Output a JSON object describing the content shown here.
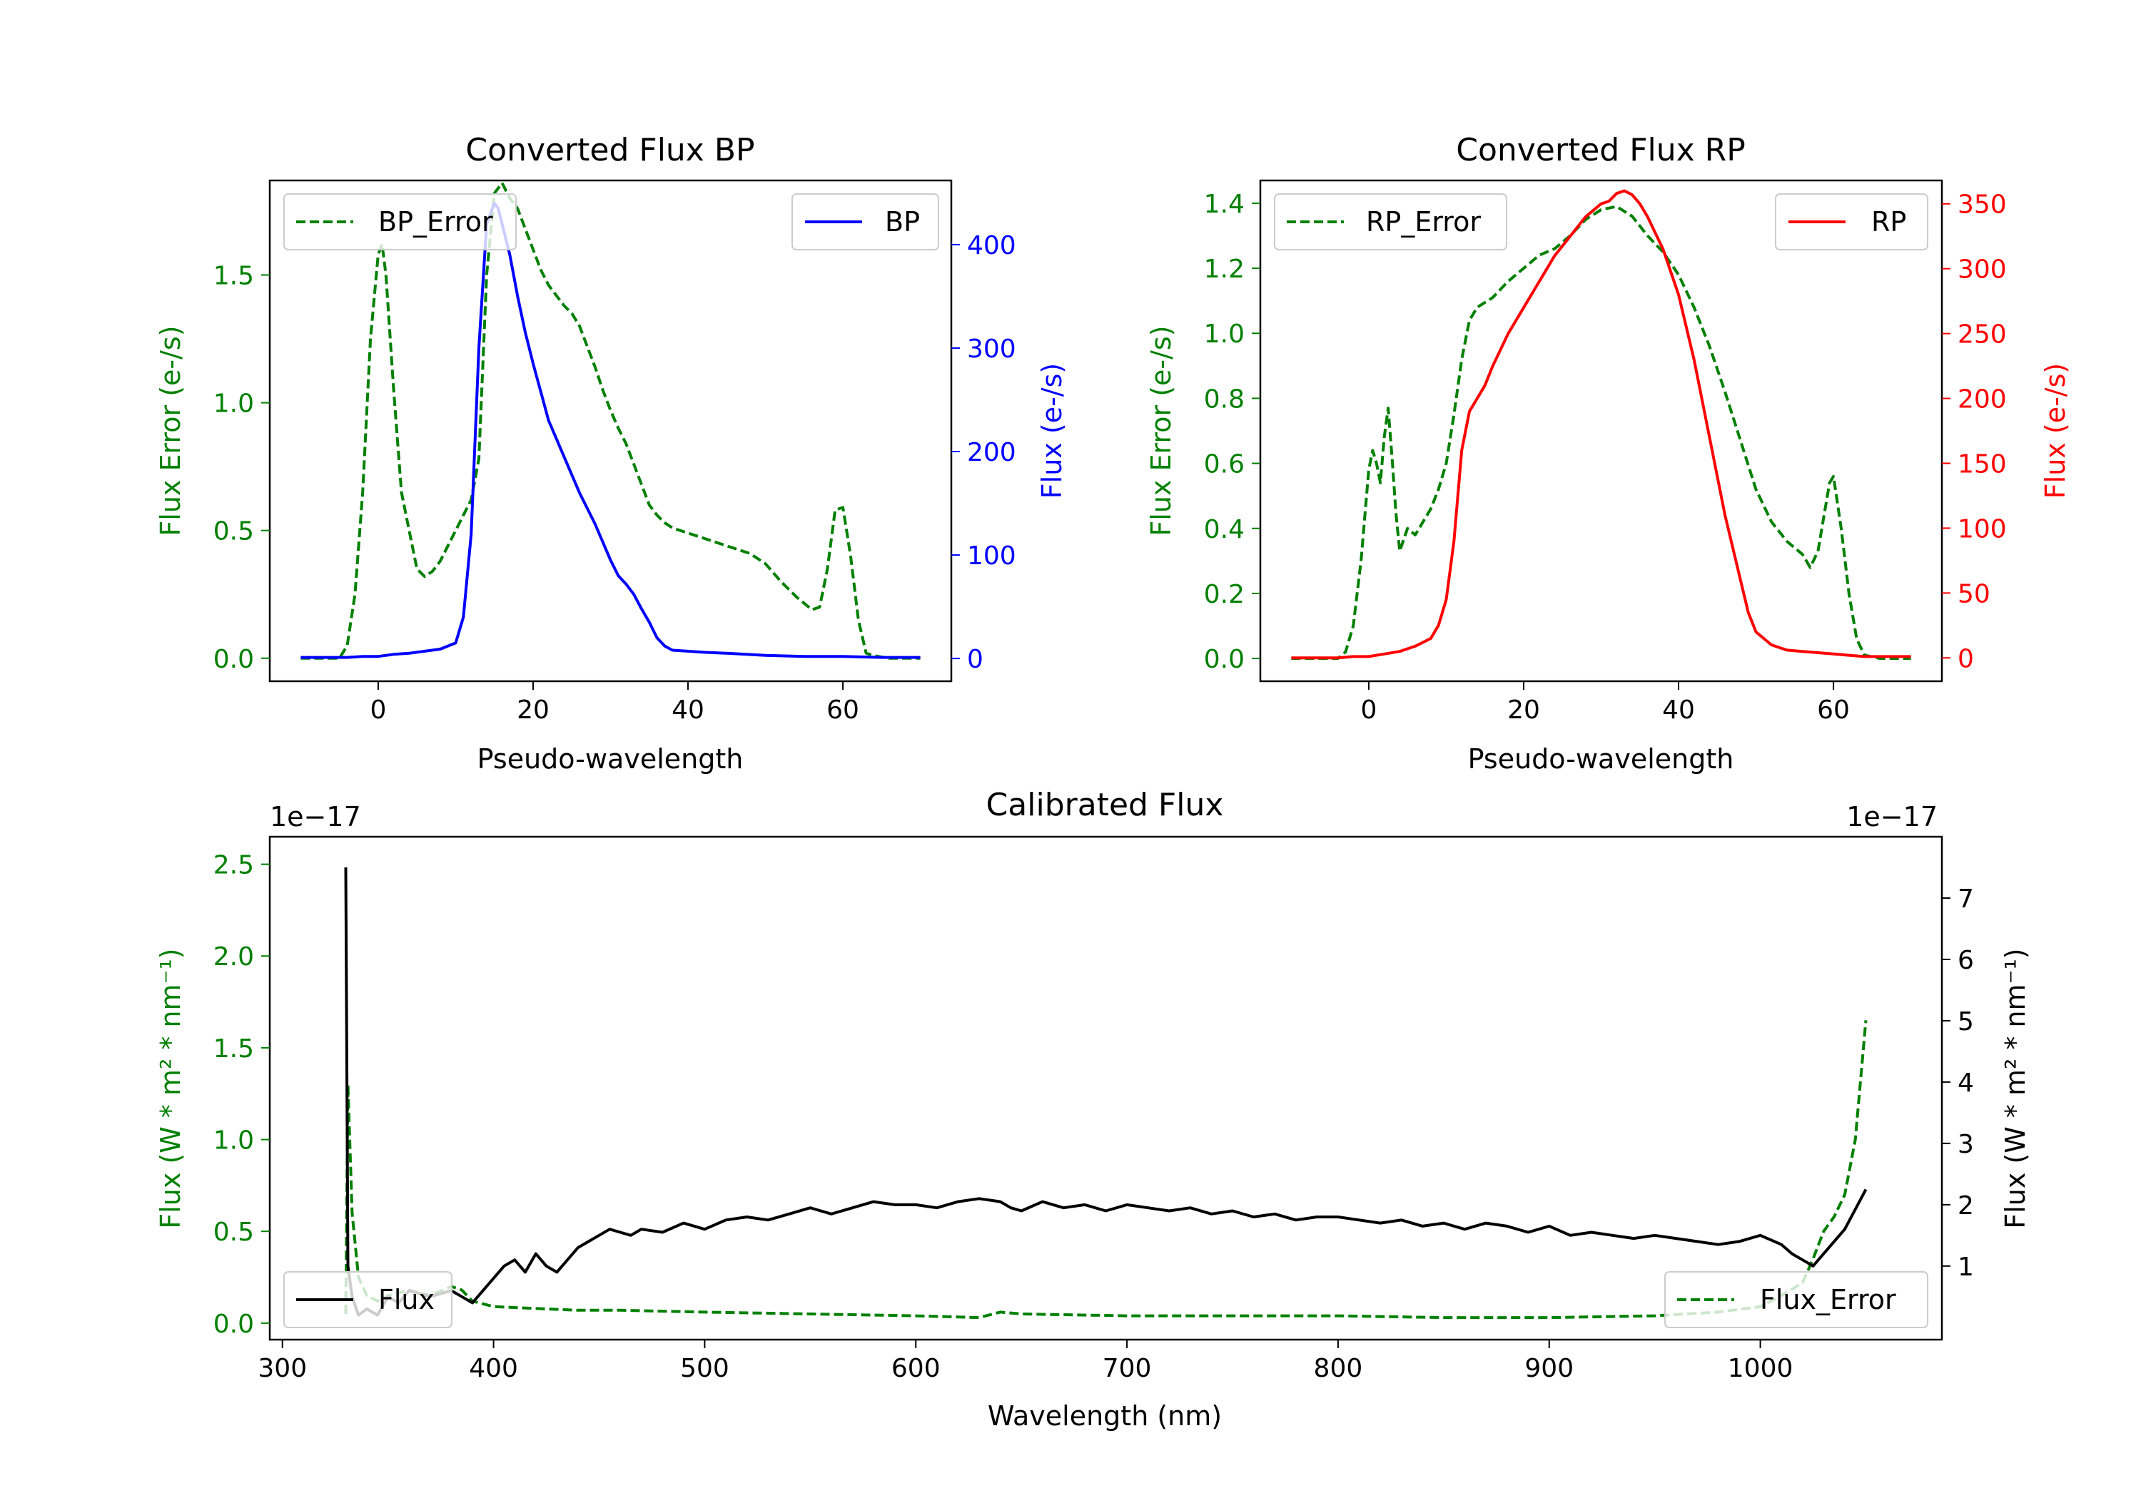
{
  "chart_data": [
    {
      "id": "bp",
      "type": "line",
      "title": "Converted Flux BP",
      "xlabel": "Pseudo-wavelength",
      "ylabel_left": "Flux Error (e-/s)",
      "ylabel_right": "Flux (e-/s)",
      "xlim": [
        -14,
        74
      ],
      "ylim_left": [
        -0.09,
        1.87
      ],
      "ylim_right": [
        -22,
        462
      ],
      "xticks": [
        "0",
        "20",
        "40",
        "60"
      ],
      "xtick_values": [
        0,
        20,
        40,
        60
      ],
      "yticks_left": [
        "0.0",
        "0.5",
        "1.0",
        "1.5"
      ],
      "ytick_values_left": [
        0,
        0.5,
        1.0,
        1.5
      ],
      "yticks_right": [
        "0",
        "100",
        "200",
        "300",
        "400"
      ],
      "ytick_values_right": [
        0,
        100,
        200,
        300,
        400
      ],
      "left_color": "#008000",
      "right_color": "#0000ff",
      "series": [
        {
          "name": "BP_Error",
          "legend": "BP_Error",
          "axis": "left",
          "style": "dashed",
          "color": "#008000",
          "x": [
            -10,
            -5,
            -4,
            -3,
            -2,
            -1,
            0,
            0.5,
            1,
            2,
            3,
            4,
            5,
            6,
            7,
            8,
            9,
            10,
            11,
            12,
            13,
            14,
            15,
            16,
            17,
            18,
            19,
            20,
            21,
            22,
            23,
            24,
            25,
            26,
            27,
            28,
            29,
            30,
            31,
            32,
            33,
            34,
            35,
            36,
            37,
            38,
            40,
            42,
            44,
            46,
            48,
            50,
            52,
            54,
            56,
            57,
            58,
            59,
            60,
            61,
            62,
            63,
            64,
            66,
            68,
            70
          ],
          "y": [
            0,
            0,
            0.05,
            0.25,
            0.65,
            1.25,
            1.58,
            1.62,
            1.5,
            1.05,
            0.65,
            0.5,
            0.35,
            0.32,
            0.34,
            0.38,
            0.44,
            0.5,
            0.56,
            0.62,
            0.78,
            1.5,
            1.82,
            1.86,
            1.8,
            1.76,
            1.68,
            1.6,
            1.52,
            1.46,
            1.42,
            1.38,
            1.35,
            1.3,
            1.22,
            1.14,
            1.05,
            0.97,
            0.9,
            0.84,
            0.76,
            0.68,
            0.6,
            0.56,
            0.53,
            0.51,
            0.49,
            0.47,
            0.45,
            0.43,
            0.41,
            0.37,
            0.3,
            0.24,
            0.19,
            0.2,
            0.35,
            0.58,
            0.59,
            0.4,
            0.15,
            0.02,
            0.01,
            0,
            0,
            0
          ]
        },
        {
          "name": "BP",
          "legend": "BP",
          "axis": "right",
          "style": "solid",
          "color": "#0000ff",
          "x": [
            -10,
            -6,
            -4,
            -2,
            0,
            2,
            4,
            6,
            8,
            10,
            11,
            12,
            13,
            14,
            15,
            15.5,
            16,
            17,
            18,
            19,
            20,
            22,
            24,
            26,
            28,
            30,
            31,
            32,
            33,
            34,
            35,
            36,
            37,
            38,
            40,
            42,
            45,
            50,
            55,
            60,
            65,
            70
          ],
          "y": [
            1,
            1,
            1,
            2,
            2,
            4,
            5,
            7,
            9,
            15,
            40,
            120,
            300,
            420,
            440,
            435,
            420,
            390,
            350,
            315,
            285,
            230,
            195,
            160,
            130,
            95,
            80,
            72,
            62,
            48,
            35,
            20,
            12,
            8,
            7,
            6,
            5,
            3,
            2,
            2,
            1,
            1
          ]
        }
      ],
      "legends": [
        {
          "series": "BP_Error",
          "location": "upper-left"
        },
        {
          "series": "BP",
          "location": "upper-right"
        }
      ]
    },
    {
      "id": "rp",
      "type": "line",
      "title": "Converted Flux RP",
      "xlabel": "Pseudo-wavelength",
      "ylabel_left": "Flux Error (e-/s)",
      "ylabel_right": "Flux (e-/s)",
      "xlim": [
        -14,
        74
      ],
      "ylim_left": [
        -0.07,
        1.47
      ],
      "ylim_right": [
        -18,
        368
      ],
      "xticks": [
        "0",
        "20",
        "40",
        "60"
      ],
      "xtick_values": [
        0,
        20,
        40,
        60
      ],
      "yticks_left": [
        "0.0",
        "0.2",
        "0.4",
        "0.6",
        "0.8",
        "1.0",
        "1.2",
        "1.4"
      ],
      "ytick_values_left": [
        0,
        0.2,
        0.4,
        0.6,
        0.8,
        1.0,
        1.2,
        1.4
      ],
      "yticks_right": [
        "0",
        "50",
        "100",
        "150",
        "200",
        "250",
        "300",
        "350"
      ],
      "ytick_values_right": [
        0,
        50,
        100,
        150,
        200,
        250,
        300,
        350
      ],
      "left_color": "#008000",
      "right_color": "#ff0000",
      "series": [
        {
          "name": "RP_Error",
          "legend": "RP_Error",
          "axis": "left",
          "style": "dashed",
          "color": "#008000",
          "x": [
            -10,
            -4,
            -3,
            -2,
            -1,
            0,
            0.5,
            1,
            1.5,
            2,
            2.5,
            3,
            3.5,
            4,
            5,
            6,
            7,
            8,
            9,
            10,
            11,
            12,
            13,
            14,
            16,
            18,
            20,
            22,
            24,
            26,
            28,
            30,
            32,
            34,
            36,
            38,
            40,
            42,
            44,
            46,
            48,
            50,
            52,
            54,
            56,
            57,
            58,
            59,
            59.5,
            60,
            61,
            62,
            63,
            64,
            66,
            70
          ],
          "y": [
            0,
            0,
            0.02,
            0.1,
            0.3,
            0.58,
            0.64,
            0.6,
            0.54,
            0.68,
            0.77,
            0.62,
            0.45,
            0.33,
            0.4,
            0.38,
            0.42,
            0.46,
            0.52,
            0.6,
            0.75,
            0.92,
            1.04,
            1.08,
            1.11,
            1.16,
            1.2,
            1.24,
            1.26,
            1.3,
            1.35,
            1.38,
            1.39,
            1.36,
            1.3,
            1.25,
            1.18,
            1.08,
            0.96,
            0.82,
            0.67,
            0.52,
            0.42,
            0.36,
            0.32,
            0.28,
            0.33,
            0.47,
            0.54,
            0.56,
            0.4,
            0.2,
            0.06,
            0.01,
            0,
            0
          ]
        },
        {
          "name": "RP",
          "legend": "RP",
          "axis": "right",
          "style": "solid",
          "color": "#ff0000",
          "x": [
            -10,
            -4,
            -2,
            0,
            2,
            4,
            6,
            8,
            9,
            10,
            11,
            12,
            13,
            14,
            15,
            16,
            18,
            20,
            22,
            24,
            26,
            28,
            30,
            31,
            32,
            33,
            34,
            35,
            36,
            38,
            40,
            42,
            44,
            46,
            48,
            49,
            50,
            52,
            54,
            56,
            58,
            60,
            62,
            64,
            66,
            70
          ],
          "y": [
            0,
            0,
            1,
            1,
            3,
            5,
            9,
            15,
            25,
            45,
            90,
            160,
            190,
            200,
            210,
            225,
            250,
            270,
            290,
            310,
            325,
            340,
            350,
            352,
            358,
            360,
            357,
            350,
            340,
            315,
            280,
            230,
            170,
            110,
            60,
            35,
            20,
            10,
            6,
            5,
            4,
            3,
            2,
            1,
            1,
            1
          ]
        }
      ],
      "legends": [
        {
          "series": "RP_Error",
          "location": "upper-left"
        },
        {
          "series": "RP",
          "location": "upper-right"
        }
      ]
    },
    {
      "id": "cal",
      "type": "line",
      "title": "Calibrated Flux",
      "xlabel": "Wavelength (nm)",
      "ylabel_left": "Flux (W * m² * nm⁻¹)",
      "ylabel_right": "Flux (W * m² * nm⁻¹)",
      "offset_left": "1e−17",
      "offset_right": "1e−17",
      "xlim": [
        294,
        1086
      ],
      "ylim_left": [
        -0.09,
        2.65
      ],
      "ylim_right": [
        -0.2,
        8.0
      ],
      "xticks": [
        "300",
        "400",
        "500",
        "600",
        "700",
        "800",
        "900",
        "1000"
      ],
      "xtick_values": [
        300,
        400,
        500,
        600,
        700,
        800,
        900,
        1000
      ],
      "yticks_left": [
        "0.0",
        "0.5",
        "1.0",
        "1.5",
        "2.0",
        "2.5"
      ],
      "ytick_values_left": [
        0,
        0.5,
        1.0,
        1.5,
        2.0,
        2.5
      ],
      "yticks_right": [
        "1",
        "2",
        "3",
        "4",
        "5",
        "6",
        "7"
      ],
      "ytick_values_right": [
        1,
        2,
        3,
        4,
        5,
        6,
        7
      ],
      "left_color": "#008000",
      "right_color": "#000000",
      "series": [
        {
          "name": "Flux_Error",
          "legend": "Flux_Error",
          "axis": "left",
          "style": "dashed",
          "color": "#008000",
          "x": [
            330,
            331,
            333,
            336,
            340,
            345,
            350,
            360,
            370,
            380,
            385,
            390,
            400,
            420,
            440,
            460,
            500,
            550,
            600,
            630,
            640,
            650,
            700,
            750,
            800,
            850,
            900,
            950,
            980,
            1000,
            1010,
            1020,
            1025,
            1030,
            1035,
            1040,
            1045,
            1050
          ],
          "y": [
            0.05,
            1.3,
            0.6,
            0.25,
            0.15,
            0.12,
            0.15,
            0.18,
            0.15,
            0.2,
            0.18,
            0.12,
            0.09,
            0.08,
            0.07,
            0.07,
            0.06,
            0.05,
            0.04,
            0.03,
            0.06,
            0.05,
            0.04,
            0.04,
            0.04,
            0.03,
            0.03,
            0.04,
            0.06,
            0.09,
            0.15,
            0.22,
            0.35,
            0.5,
            0.58,
            0.7,
            1.0,
            1.65
          ]
        },
        {
          "name": "Flux",
          "legend": "Flux",
          "axis": "right",
          "style": "solid",
          "color": "#000000",
          "x": [
            330,
            331,
            333,
            336,
            340,
            345,
            350,
            355,
            360,
            370,
            380,
            385,
            390,
            395,
            400,
            405,
            410,
            415,
            420,
            425,
            430,
            435,
            440,
            445,
            450,
            455,
            460,
            465,
            470,
            480,
            490,
            500,
            510,
            520,
            530,
            540,
            550,
            560,
            570,
            580,
            590,
            600,
            610,
            620,
            630,
            640,
            645,
            650,
            660,
            670,
            680,
            690,
            700,
            710,
            720,
            730,
            740,
            750,
            760,
            770,
            780,
            790,
            800,
            810,
            820,
            830,
            840,
            850,
            860,
            870,
            880,
            890,
            900,
            910,
            920,
            930,
            940,
            950,
            960,
            970,
            980,
            990,
            1000,
            1010,
            1015,
            1020,
            1025,
            1030,
            1040,
            1050
          ],
          "y": [
            7.5,
            1.0,
            0.5,
            0.2,
            0.3,
            0.2,
            0.5,
            0.4,
            0.6,
            0.5,
            0.6,
            0.5,
            0.4,
            0.6,
            0.8,
            1.0,
            1.1,
            0.9,
            1.2,
            1.0,
            0.9,
            1.1,
            1.3,
            1.4,
            1.5,
            1.6,
            1.55,
            1.5,
            1.6,
            1.55,
            1.7,
            1.6,
            1.75,
            1.8,
            1.75,
            1.85,
            1.95,
            1.85,
            1.95,
            2.05,
            2.0,
            2.0,
            1.95,
            2.05,
            2.1,
            2.05,
            1.95,
            1.9,
            2.05,
            1.95,
            2.0,
            1.9,
            2.0,
            1.95,
            1.9,
            1.95,
            1.85,
            1.9,
            1.8,
            1.85,
            1.75,
            1.8,
            1.8,
            1.75,
            1.7,
            1.75,
            1.65,
            1.7,
            1.6,
            1.7,
            1.65,
            1.55,
            1.65,
            1.5,
            1.55,
            1.5,
            1.45,
            1.5,
            1.45,
            1.4,
            1.35,
            1.4,
            1.5,
            1.35,
            1.2,
            1.1,
            1.0,
            1.2,
            1.6,
            2.25
          ]
        }
      ],
      "legends": [
        {
          "series": "Flux",
          "location": "lower-left"
        },
        {
          "series": "Flux_Error",
          "location": "lower-right"
        }
      ]
    }
  ]
}
